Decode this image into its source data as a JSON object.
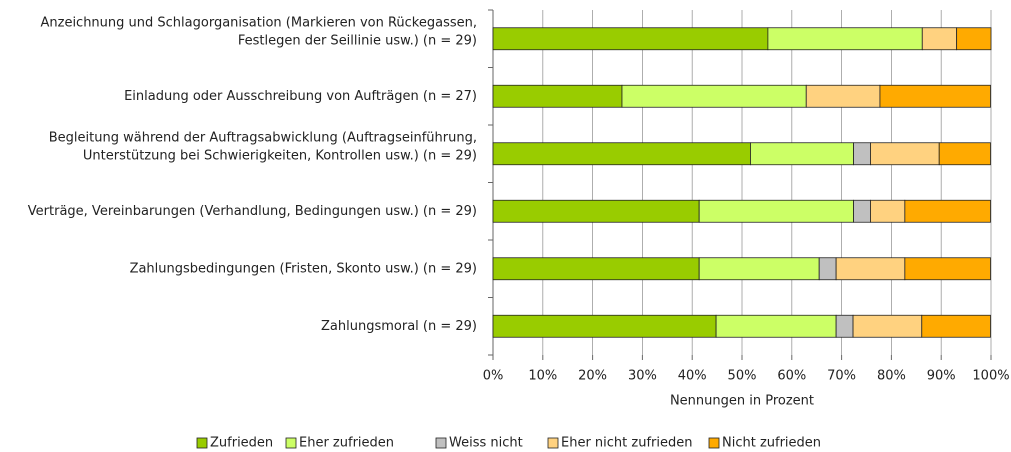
{
  "chart_data": {
    "type": "stacked-bar-horizontal",
    "categories": [
      [
        "Anzeichnung und Schlagorganisation (Markieren von Rückegassen,",
        "Festlegen der Seillinie usw.) (n = 29)"
      ],
      [
        "Einladung oder Ausschreibung von Aufträgen (n = 27)"
      ],
      [
        "Begleitung während der Auftragsabwicklung (Auftragseinführung,",
        "Unterstützung bei Schwierigkeiten, Kontrollen usw.) (n = 29)"
      ],
      [
        "Verträge, Vereinbarungen (Verhandlung, Bedingungen usw.) (n = 29)"
      ],
      [
        "Zahlungsbedingungen (Fristen, Skonto usw.) (n = 29)"
      ],
      [
        "Zahlungsmoral (n = 29)"
      ]
    ],
    "series": [
      {
        "name": "Zufrieden",
        "color": "#99cc00",
        "values": [
          55.2,
          25.9,
          51.7,
          41.4,
          41.4,
          44.8
        ]
      },
      {
        "name": "Eher zufrieden",
        "color": "#ccff66",
        "values": [
          31.0,
          37.0,
          20.7,
          31.0,
          24.1,
          24.1
        ]
      },
      {
        "name": "Weiss nicht",
        "color": "#c0c0c0",
        "values": [
          0,
          0,
          3.4,
          3.4,
          3.4,
          3.4
        ]
      },
      {
        "name": "Eher nicht zufrieden",
        "color": "#ffd280",
        "values": [
          6.9,
          14.8,
          13.8,
          6.9,
          13.8,
          13.8
        ]
      },
      {
        "name": "Nicht zufrieden",
        "color": "#ffaa00",
        "values": [
          6.9,
          22.2,
          10.3,
          17.2,
          17.2,
          13.8
        ]
      }
    ],
    "xlabel": "Nennungen in Prozent",
    "xlim": [
      0,
      100
    ],
    "xticks": [
      {
        "value": 0,
        "label": "0%"
      },
      {
        "value": 10,
        "label": "10%"
      },
      {
        "value": 20,
        "label": "20%"
      },
      {
        "value": 30,
        "label": "30%"
      },
      {
        "value": 40,
        "label": "40%"
      },
      {
        "value": 50,
        "label": "50%"
      },
      {
        "value": 60,
        "label": "60%"
      },
      {
        "value": 70,
        "label": "70%"
      },
      {
        "value": 80,
        "label": "80%"
      },
      {
        "value": 90,
        "label": "90%"
      },
      {
        "value": 100,
        "label": "100%"
      }
    ],
    "grid": true,
    "legend": "bottom"
  }
}
